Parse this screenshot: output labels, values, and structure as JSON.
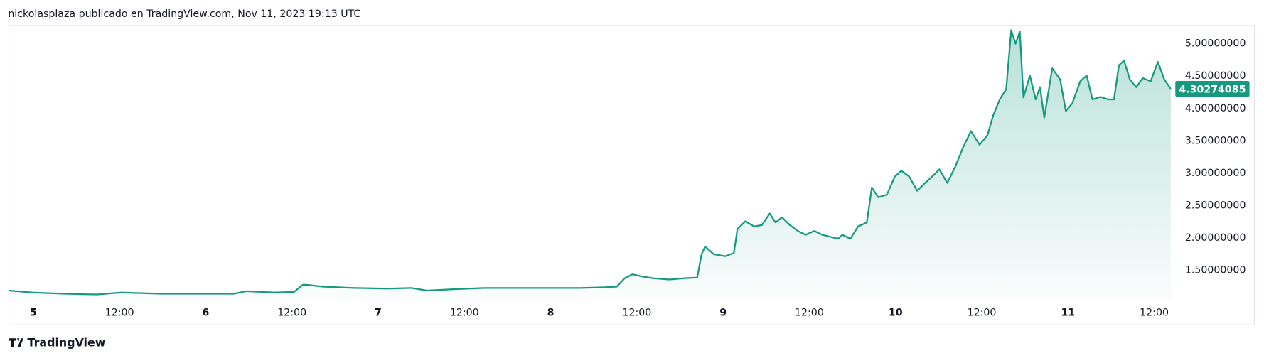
{
  "header": "nickolasplaza publicado en TradingView.com, Nov 11, 2023 19:13 UTC",
  "footer": "TradingView",
  "chart_data": {
    "type": "line",
    "color": "#159a80",
    "x": [
      -3.4,
      -0.1,
      4.4,
      8.9,
      12.2,
      17.8,
      23.4,
      27.9,
      29.6,
      33.5,
      36.3,
      37.5,
      38.0,
      40.3,
      44.7,
      49.2,
      52.6,
      54.8,
      58.2,
      62.7,
      67.2,
      71.7,
      76.1,
      79.5,
      81.2,
      82.3,
      83.4,
      84.6,
      86.2,
      88.5,
      90.7,
      92.4,
      93.0,
      93.5,
      94.7,
      96.3,
      97.5,
      98.0,
      99.1,
      100.3,
      101.4,
      102.5,
      103.3,
      104.2,
      105.3,
      106.4,
      107.5,
      108.7,
      109.8,
      112.0,
      112.6,
      113.7,
      114.8,
      116.0,
      116.7,
      117.6,
      118.8,
      119.9,
      120.8,
      121.9,
      123.0,
      124.1,
      125.3,
      126.1,
      127.2,
      128.3,
      129.4,
      130.5,
      131.7,
      132.8,
      133.6,
      134.5,
      135.4,
      136.1,
      136.7,
      137.3,
      137.8,
      138.7,
      139.5,
      140.1,
      140.7,
      141.8,
      142.9,
      143.7,
      144.6,
      145.7,
      146.6,
      147.4,
      148.5,
      149.6,
      150.4,
      151.1,
      151.8,
      152.6,
      153.5,
      154.4,
      155.5,
      156.5,
      157.4,
      158.3
    ],
    "values": [
      1.19,
      1.16,
      1.14,
      1.13,
      1.16,
      1.14,
      1.14,
      1.14,
      1.18,
      1.16,
      1.17,
      1.28,
      1.28,
      1.25,
      1.23,
      1.22,
      1.23,
      1.19,
      1.21,
      1.23,
      1.23,
      1.23,
      1.23,
      1.24,
      1.25,
      1.38,
      1.44,
      1.41,
      1.38,
      1.36,
      1.38,
      1.39,
      1.75,
      1.87,
      1.75,
      1.72,
      1.77,
      2.14,
      2.26,
      2.18,
      2.2,
      2.38,
      2.24,
      2.32,
      2.2,
      2.11,
      2.05,
      2.11,
      2.05,
      1.99,
      2.05,
      1.99,
      2.18,
      2.24,
      2.78,
      2.63,
      2.67,
      2.95,
      3.04,
      2.95,
      2.73,
      2.85,
      2.97,
      3.06,
      2.85,
      3.1,
      3.4,
      3.65,
      3.44,
      3.59,
      3.9,
      4.14,
      4.3,
      5.21,
      5.0,
      5.19,
      4.17,
      4.51,
      4.14,
      4.33,
      3.86,
      4.62,
      4.45,
      3.96,
      4.08,
      4.42,
      4.51,
      4.14,
      4.18,
      4.14,
      4.14,
      4.67,
      4.74,
      4.45,
      4.33,
      4.47,
      4.42,
      4.72,
      4.45,
      4.30274085
    ],
    "last_value_label": "4.30274085",
    "xlim": [
      -3.4,
      158.6
    ],
    "xticks": [
      {
        "value": 0,
        "label": "5"
      },
      {
        "value": 12,
        "label": "12:00"
      },
      {
        "value": 24,
        "label": "6"
      },
      {
        "value": 36,
        "label": "12:00"
      },
      {
        "value": 48,
        "label": "7"
      },
      {
        "value": 60,
        "label": "12:00"
      },
      {
        "value": 72,
        "label": "8"
      },
      {
        "value": 84,
        "label": "12:00"
      },
      {
        "value": 96,
        "label": "9"
      },
      {
        "value": 108,
        "label": "12:00"
      },
      {
        "value": 120,
        "label": "10"
      },
      {
        "value": 132,
        "label": "12:00"
      },
      {
        "value": 144,
        "label": "11"
      },
      {
        "value": 156,
        "label": "12:00"
      }
    ],
    "ylim": [
      1.03,
      5.27
    ],
    "yticks": [
      {
        "value": 1.5,
        "label": "1.50000000"
      },
      {
        "value": 2,
        "label": "2.00000000"
      },
      {
        "value": 2.5,
        "label": "2.50000000"
      },
      {
        "value": 3,
        "label": "3.00000000"
      },
      {
        "value": 3.5,
        "label": "3.50000000"
      },
      {
        "value": 4,
        "label": "4.00000000"
      },
      {
        "value": 4.5,
        "label": "4.50000000"
      },
      {
        "value": 5,
        "label": "5.00000000"
      }
    ]
  }
}
